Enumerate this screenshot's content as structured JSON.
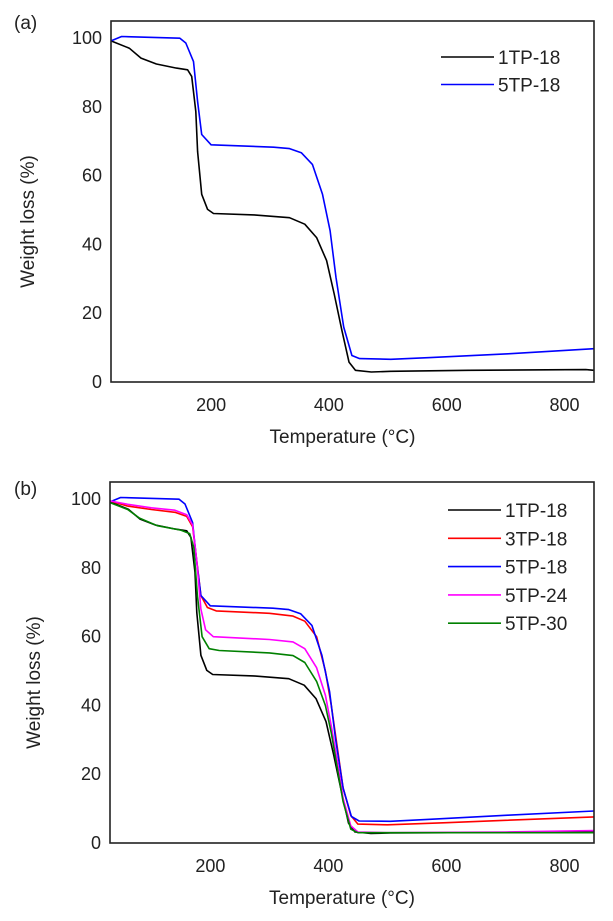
{
  "chart_data": [
    {
      "type": "line",
      "panel_label": "(a)",
      "xlabel": "Temperature (°C)",
      "ylabel": "Weight loss (%)",
      "xlim": [
        30,
        850
      ],
      "ylim": [
        0,
        105
      ],
      "xticks": [
        200,
        400,
        600,
        800
      ],
      "yticks": [
        0,
        20,
        40,
        60,
        80,
        100
      ],
      "grid": false,
      "legend_position": "top-right",
      "series": [
        {
          "name": "1TP-18",
          "color": "#000000",
          "points": [
            [
              30,
              99.2
            ],
            [
              61,
              97.1
            ],
            [
              81,
              94.2
            ],
            [
              107,
              92.5
            ],
            [
              141,
              91.3
            ],
            [
              160,
              90.8
            ],
            [
              167,
              88.9
            ],
            [
              174,
              78.7
            ],
            [
              177,
              67
            ],
            [
              184,
              54.6
            ],
            [
              194,
              50.2
            ],
            [
              204,
              49
            ],
            [
              273,
              48.6
            ],
            [
              333,
              47.8
            ],
            [
              359,
              45.9
            ],
            [
              379,
              42
            ],
            [
              396,
              35.3
            ],
            [
              409,
              25.6
            ],
            [
              422,
              15
            ],
            [
              434,
              5.8
            ],
            [
              445,
              3.4
            ],
            [
              472,
              2.9
            ],
            [
              505,
              3.1
            ],
            [
              637,
              3.4
            ],
            [
              836,
              3.6
            ],
            [
              850,
              3.4
            ]
          ]
        },
        {
          "name": "5TP-18",
          "color": "#0000ff",
          "points": [
            [
              30,
              99.2
            ],
            [
              48,
              100.5
            ],
            [
              147,
              100
            ],
            [
              157,
              98.6
            ],
            [
              170,
              93.2
            ],
            [
              177,
              81.6
            ],
            [
              184,
              72
            ],
            [
              200,
              69
            ],
            [
              306,
              68.3
            ],
            [
              333,
              67.9
            ],
            [
              353,
              66.7
            ],
            [
              372,
              63.3
            ],
            [
              389,
              54.6
            ],
            [
              402,
              44
            ],
            [
              412,
              30.4
            ],
            [
              425,
              16
            ],
            [
              439,
              7.7
            ],
            [
              452,
              6.8
            ],
            [
              505,
              6.6
            ],
            [
              572,
              7.1
            ],
            [
              704,
              8.2
            ],
            [
              850,
              9.7
            ]
          ]
        }
      ]
    },
    {
      "type": "line",
      "panel_label": "(b)",
      "xlabel": "Temperature (°C)",
      "ylabel": "Weight loss (%)",
      "xlim": [
        30,
        850
      ],
      "ylim": [
        0,
        105
      ],
      "xticks": [
        200,
        400,
        600,
        800
      ],
      "yticks": [
        0,
        20,
        40,
        60,
        80,
        100
      ],
      "grid": false,
      "legend_position": "top-right",
      "series": [
        {
          "name": "1TP-18",
          "color": "#000000",
          "points": [
            [
              30,
              99.2
            ],
            [
              61,
              97.1
            ],
            [
              81,
              94.2
            ],
            [
              107,
              92.5
            ],
            [
              141,
              91.3
            ],
            [
              160,
              90.8
            ],
            [
              167,
              88.9
            ],
            [
              174,
              78.7
            ],
            [
              177,
              67
            ],
            [
              184,
              54.6
            ],
            [
              194,
              50.2
            ],
            [
              204,
              49
            ],
            [
              273,
              48.6
            ],
            [
              333,
              47.8
            ],
            [
              359,
              45.9
            ],
            [
              379,
              42
            ],
            [
              396,
              35.3
            ],
            [
              409,
              25.6
            ],
            [
              422,
              15
            ],
            [
              434,
              5.8
            ],
            [
              445,
              3.2
            ],
            [
              472,
              2.8
            ],
            [
              505,
              2.9
            ],
            [
              850,
              3.2
            ]
          ]
        },
        {
          "name": "3TP-18",
          "color": "#ff0000",
          "points": [
            [
              30,
              99.5
            ],
            [
              60,
              98
            ],
            [
              100,
              97
            ],
            [
              140,
              96.2
            ],
            [
              160,
              95
            ],
            [
              170,
              92
            ],
            [
              177,
              82
            ],
            [
              184,
              72
            ],
            [
              195,
              68.5
            ],
            [
              210,
              67.5
            ],
            [
              300,
              66.8
            ],
            [
              340,
              66
            ],
            [
              360,
              64.5
            ],
            [
              380,
              60
            ],
            [
              395,
              50
            ],
            [
              405,
              40
            ],
            [
              415,
              28
            ],
            [
              425,
              16
            ],
            [
              438,
              8
            ],
            [
              450,
              5.5
            ],
            [
              500,
              5.3
            ],
            [
              600,
              5.9
            ],
            [
              700,
              6.6
            ],
            [
              850,
              7.6
            ]
          ]
        },
        {
          "name": "5TP-18",
          "color": "#0000ff",
          "points": [
            [
              30,
              99.2
            ],
            [
              48,
              100.5
            ],
            [
              147,
              100
            ],
            [
              157,
              98.6
            ],
            [
              170,
              93.2
            ],
            [
              177,
              81.6
            ],
            [
              184,
              72
            ],
            [
              200,
              69
            ],
            [
              306,
              68.3
            ],
            [
              333,
              67.9
            ],
            [
              353,
              66.7
            ],
            [
              372,
              63.3
            ],
            [
              389,
              54.6
            ],
            [
              402,
              44
            ],
            [
              412,
              30.4
            ],
            [
              425,
              16
            ],
            [
              439,
              7.7
            ],
            [
              452,
              6.4
            ],
            [
              505,
              6.3
            ],
            [
              572,
              6.9
            ],
            [
              704,
              8.1
            ],
            [
              850,
              9.3
            ]
          ]
        },
        {
          "name": "5TP-24",
          "color": "#ff00ff",
          "points": [
            [
              30,
              99.5
            ],
            [
              60,
              98.5
            ],
            [
              100,
              97.5
            ],
            [
              140,
              96.8
            ],
            [
              160,
              95.5
            ],
            [
              170,
              92.5
            ],
            [
              177,
              82
            ],
            [
              184,
              68
            ],
            [
              192,
              62
            ],
            [
              205,
              60
            ],
            [
              300,
              59.2
            ],
            [
              340,
              58.5
            ],
            [
              360,
              56.5
            ],
            [
              380,
              51
            ],
            [
              395,
              43
            ],
            [
              405,
              34
            ],
            [
              415,
              24
            ],
            [
              425,
              13
            ],
            [
              438,
              5
            ],
            [
              450,
              3.2
            ],
            [
              500,
              3
            ],
            [
              700,
              3.2
            ],
            [
              850,
              3.6
            ]
          ]
        },
        {
          "name": "5TP-30",
          "color": "#008000",
          "points": [
            [
              30,
              99
            ],
            [
              60,
              97
            ],
            [
              80,
              94.5
            ],
            [
              110,
              92.3
            ],
            [
              150,
              91
            ],
            [
              165,
              90
            ],
            [
              172,
              86
            ],
            [
              178,
              72
            ],
            [
              186,
              60
            ],
            [
              198,
              56.5
            ],
            [
              215,
              56
            ],
            [
              300,
              55.3
            ],
            [
              340,
              54.5
            ],
            [
              360,
              52.5
            ],
            [
              380,
              47
            ],
            [
              395,
              40
            ],
            [
              405,
              32
            ],
            [
              415,
              22
            ],
            [
              425,
              12
            ],
            [
              438,
              4
            ],
            [
              450,
              3
            ],
            [
              850,
              3
            ]
          ]
        }
      ]
    }
  ]
}
